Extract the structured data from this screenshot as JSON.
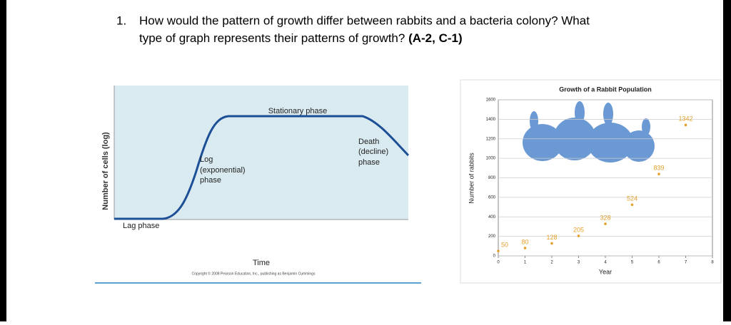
{
  "question": {
    "number": "1.",
    "line1": "How would the pattern of growth differ between rabbits and a bacteria colony? What",
    "line2": "type of graph represents their patterns of growth?",
    "code": "(A-2, C-1)"
  },
  "growth_curve": {
    "y_label": "Number of cells (log)",
    "x_label": "Time",
    "lag": "Lag phase",
    "log": [
      "Log",
      "(exponential)",
      "phase"
    ],
    "stationary": "Stationary phase",
    "death": [
      "Death",
      "(decline)",
      "phase"
    ],
    "copyright": "Copyright © 2008 Pearson Education, Inc., publishing as Benjamin Cummings"
  },
  "chart_data": {
    "type": "scatter",
    "title": "Growth of a Rabbit Population",
    "x_label": "Year",
    "y_label": "Number of rabbits",
    "x": [
      0,
      1,
      2,
      3,
      4,
      5,
      6,
      7
    ],
    "values": [
      50,
      80,
      128,
      205,
      328,
      524,
      839,
      1342
    ],
    "color": "#e3a02c",
    "xlim": [
      0,
      8
    ],
    "xticks": [
      0,
      1,
      2,
      3,
      4,
      5,
      6,
      7,
      8
    ],
    "ylim": [
      0,
      1600
    ],
    "yticks": [
      0,
      200,
      400,
      600,
      800,
      1000,
      1200,
      1400,
      1600
    ],
    "grid": true
  }
}
